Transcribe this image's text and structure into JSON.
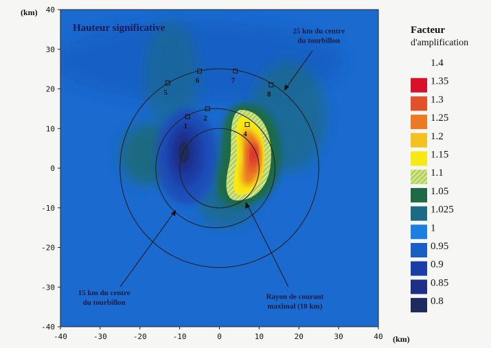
{
  "chart_data": {
    "type": "heatmap",
    "title": "Hauteur significative",
    "xlabel": "(km)",
    "ylabel": "(km)",
    "xlim": [
      -40,
      40
    ],
    "ylim": [
      -40,
      40
    ],
    "x_ticks": [
      "-40",
      "-30",
      "-20",
      "-10",
      "0",
      "10",
      "20",
      "30",
      "40"
    ],
    "y_ticks": [
      "40",
      "30",
      "20",
      "10",
      "0",
      "-10",
      "-20",
      "-30",
      "-40"
    ],
    "legend": {
      "title": "Facteur",
      "subtitle": "d'amplification",
      "levels": [
        {
          "label": "1.4",
          "color": ""
        },
        {
          "label": "1.35",
          "color": "#d8102a"
        },
        {
          "label": "1.3",
          "color": "#e2522a"
        },
        {
          "label": "1.25",
          "color": "#ec7a22"
        },
        {
          "label": "1.2",
          "color": "#f3c21e"
        },
        {
          "label": "1.15",
          "color": "#f7ea14"
        },
        {
          "label": "1.1",
          "color": "#8ec43c"
        },
        {
          "label": "1.05",
          "color": "#1e6a46"
        },
        {
          "label": "1.025",
          "color": "#1c6a86"
        },
        {
          "label": "1",
          "color": "#1a7fe0"
        },
        {
          "label": "0.95",
          "color": "#1a5fc8"
        },
        {
          "label": "0.9",
          "color": "#1a3ea6"
        },
        {
          "label": "0.85",
          "color": "#1d2f86"
        },
        {
          "label": "0.8",
          "color": "#1c2a5e"
        }
      ]
    },
    "circles_km": [
      {
        "label": "Rayon de courant maximal (10 km)",
        "radius": 10
      },
      {
        "label": "15 km du centre du tourbillon",
        "radius": 15
      },
      {
        "label": "25 km du centre du tourbillon",
        "radius": 25
      }
    ],
    "points": [
      {
        "label": "1",
        "x": -8,
        "y": 13
      },
      {
        "label": "2",
        "x": -3,
        "y": 15
      },
      {
        "label": "4",
        "x": 7,
        "y": 11
      },
      {
        "label": "5",
        "x": -13,
        "y": 21.5
      },
      {
        "label": "6",
        "x": -5,
        "y": 24.5
      },
      {
        "label": "7",
        "x": 4,
        "y": 24.5
      },
      {
        "label": "8",
        "x": 13,
        "y": 21
      }
    ],
    "annotations": [
      {
        "lines": [
          "25 km du centre",
          "du tourbillon"
        ],
        "x": 25,
        "y": 34
      },
      {
        "lines": [
          "15 km du centre",
          "du tourbillon"
        ],
        "x": -29,
        "y": -32
      },
      {
        "lines": [
          "Rayon de courant",
          "maximal (10 km)"
        ],
        "x": 19,
        "y": -33
      }
    ]
  }
}
